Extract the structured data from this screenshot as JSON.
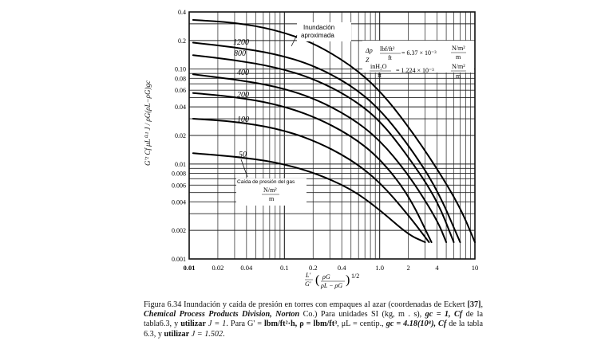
{
  "chart_data": {
    "type": "line",
    "title": "Figura 6.34 Inundación y caída de presión en torres con empaques al azar",
    "xscale": "log",
    "yscale": "log",
    "xlim": [
      0.01,
      10
    ],
    "ylim": [
      0.001,
      0.4
    ],
    "grid": true,
    "xlabel": "L'/G' (ρG/(ρL − ρG))^1/2",
    "ylabel": "G'² Cf μL^0.1 J / (ρG (ρL − ρG) gc)",
    "x_ticks": [
      "0.01",
      "0.02",
      "0.04",
      "0.1",
      "0.2",
      "0.4",
      "1.0",
      "2",
      "4",
      "10"
    ],
    "y_ticks": [
      "0.001",
      "0.002",
      "0.004",
      "0.006",
      "0.008",
      "0.01",
      "0.02",
      "0.04",
      "0.06",
      "0.08",
      "0.10",
      "0.2",
      "0.4"
    ],
    "series": [
      {
        "name": "Inundación aproximada",
        "points": [
          [
            0.011,
            0.33
          ],
          [
            0.03,
            0.31
          ],
          [
            0.08,
            0.26
          ],
          [
            0.2,
            0.19
          ],
          [
            0.5,
            0.11
          ],
          [
            1.0,
            0.06
          ],
          [
            2.0,
            0.025
          ],
          [
            4.0,
            0.009
          ],
          [
            7.0,
            0.0035
          ],
          [
            10.0,
            0.0015
          ]
        ]
      },
      {
        "name": "1200",
        "points": [
          [
            0.011,
            0.19
          ],
          [
            0.03,
            0.17
          ],
          [
            0.08,
            0.145
          ],
          [
            0.2,
            0.11
          ],
          [
            0.5,
            0.068
          ],
          [
            1.0,
            0.038
          ],
          [
            2.0,
            0.016
          ],
          [
            4.0,
            0.0055
          ],
          [
            7.0,
            0.0015
          ]
        ]
      },
      {
        "name": "800",
        "points": [
          [
            0.011,
            0.14
          ],
          [
            0.03,
            0.125
          ],
          [
            0.08,
            0.105
          ],
          [
            0.2,
            0.08
          ],
          [
            0.5,
            0.05
          ],
          [
            1.0,
            0.029
          ],
          [
            2.0,
            0.012
          ],
          [
            4.0,
            0.0042
          ],
          [
            6.0,
            0.0015
          ]
        ]
      },
      {
        "name": "400",
        "points": [
          [
            0.011,
            0.088
          ],
          [
            0.03,
            0.078
          ],
          [
            0.08,
            0.066
          ],
          [
            0.2,
            0.05
          ],
          [
            0.5,
            0.031
          ],
          [
            1.0,
            0.018
          ],
          [
            2.0,
            0.0078
          ],
          [
            4.0,
            0.0026
          ],
          [
            5.0,
            0.0015
          ]
        ]
      },
      {
        "name": "200",
        "points": [
          [
            0.011,
            0.056
          ],
          [
            0.03,
            0.051
          ],
          [
            0.08,
            0.043
          ],
          [
            0.2,
            0.032
          ],
          [
            0.5,
            0.02
          ],
          [
            1.0,
            0.0115
          ],
          [
            2.0,
            0.0048
          ],
          [
            3.5,
            0.0015
          ]
        ]
      },
      {
        "name": "100",
        "points": [
          [
            0.011,
            0.03
          ],
          [
            0.03,
            0.028
          ],
          [
            0.08,
            0.024
          ],
          [
            0.2,
            0.018
          ],
          [
            0.5,
            0.0112
          ],
          [
            1.0,
            0.0065
          ],
          [
            2.0,
            0.0029
          ],
          [
            3.3,
            0.0015
          ]
        ]
      },
      {
        "name": "50",
        "points": [
          [
            0.011,
            0.013
          ],
          [
            0.03,
            0.012
          ],
          [
            0.08,
            0.0105
          ],
          [
            0.2,
            0.0082
          ],
          [
            0.5,
            0.0055
          ],
          [
            1.0,
            0.0033
          ],
          [
            2.0,
            0.0018
          ],
          [
            3.0,
            0.0015
          ]
        ]
      }
    ],
    "annotations": [
      {
        "text": "Inundación",
        "x": 0.6,
        "y": 0.3
      },
      {
        "text": "aproximada",
        "x": 0.6,
        "y": 0.24
      },
      {
        "text": "Caída de presión del gas",
        "x": 0.1,
        "y": 0.0075
      },
      {
        "text": "N/m²",
        "x": 0.1,
        "y": 0.006
      },
      {
        "text": "m",
        "x": 0.1,
        "y": 0.005
      }
    ],
    "legend_box": {
      "line1_left": "Δp",
      "line1_left_den": "Z",
      "line1_num": "lbf/ft²",
      "line1_den": "ft",
      "line1_eq": "= 6.37 × 10⁻³",
      "line1_unit_num": "N/m²",
      "line1_unit_den": "m",
      "line2_num": "inH₂O",
      "line2_den": "ft",
      "line2_eq": "= 1.224 × 10⁻³",
      "line2_unit_num": "N/m²",
      "line2_unit_den": "m"
    }
  },
  "caption": {
    "figure": "Figura 6.34",
    "text1": " Inundación y caída de presión en torres con empaques al azar (coordenadas de Eckert ",
    "ref": "[37]",
    "text2": ", ",
    "company": "Chemical Process Products Division, Norton",
    "text3": " Co.) Para unidades SI (kg, m . s), ",
    "gc1": "gc = 1, Cf",
    "text4": " de la tabla6.3, y ",
    "utilizar1": "utilizar",
    "j1": " J = 1",
    "text5": ". Para G' = ",
    "units1": "lbm/ft²·h, ρ = lbm/ft³",
    "text6": ", μL = centip., ",
    "gc2": "gc = 4.18(10⁸), Cf",
    "text7": " de la tabla 6.3, y ",
    "utilizar2": "utilizar",
    "j2": " J = 1.502",
    "text8": "."
  }
}
